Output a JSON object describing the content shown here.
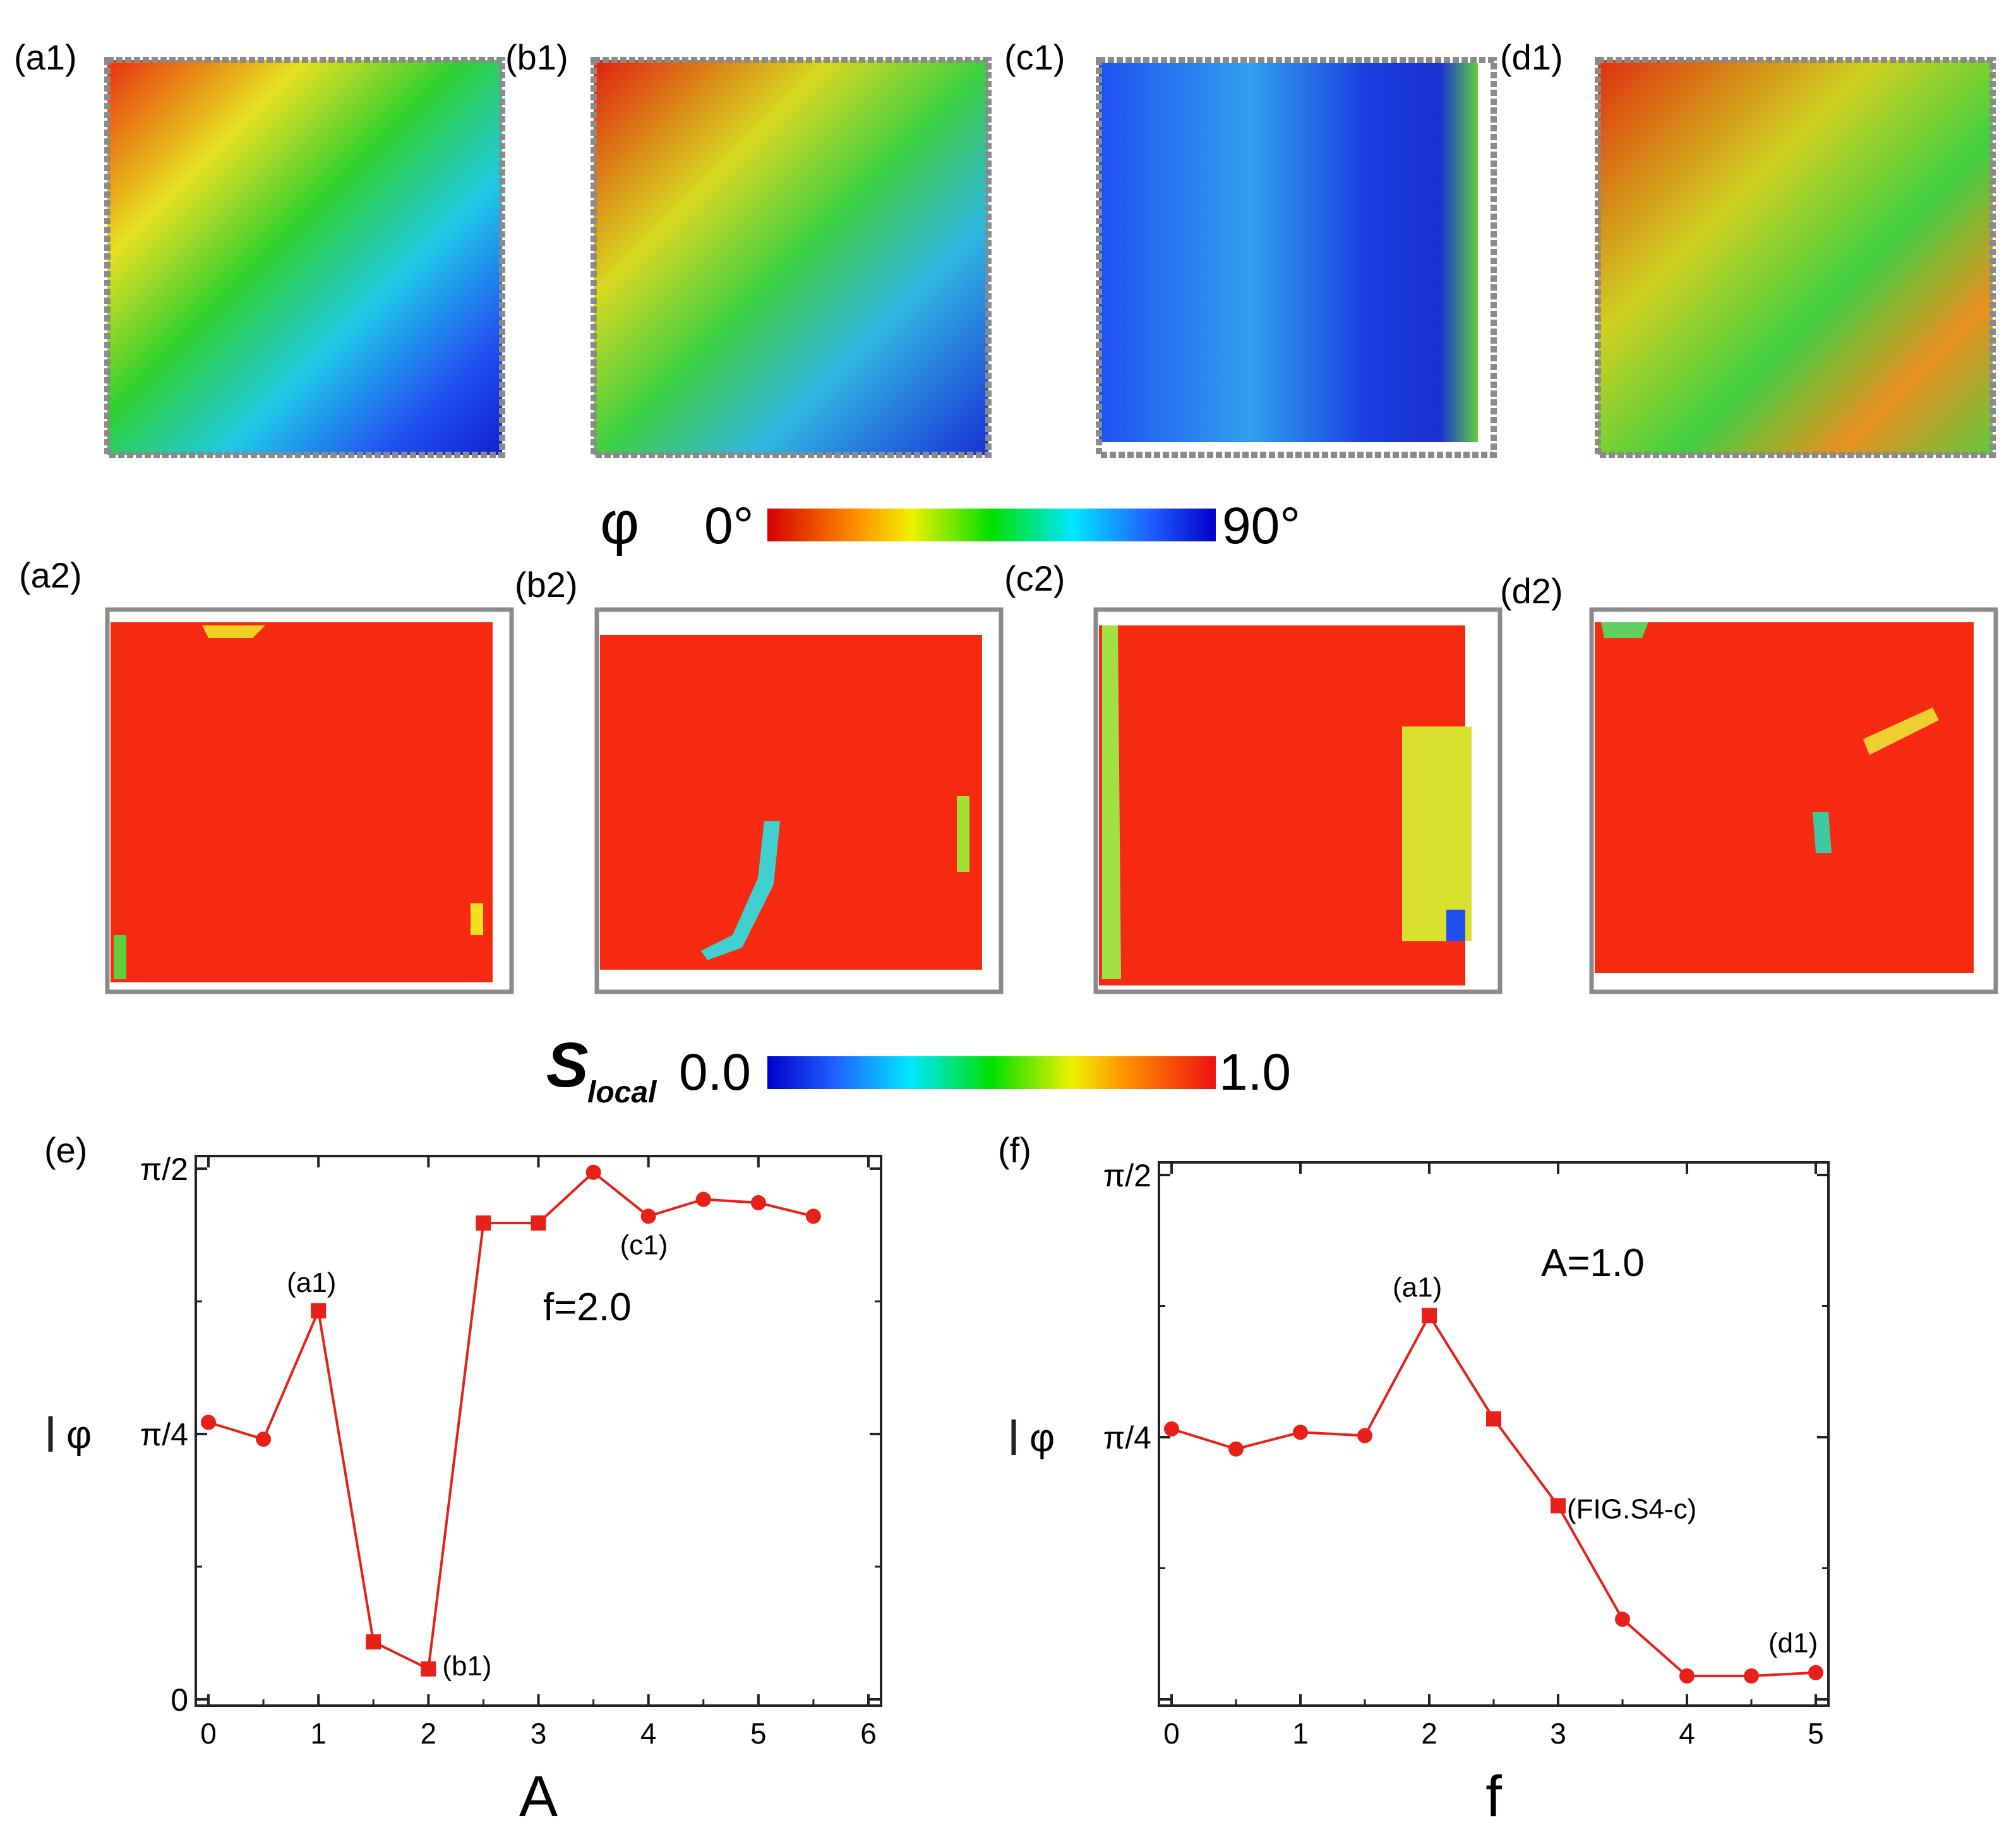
{
  "labels": {
    "a1": "(a1)",
    "b1": "(b1)",
    "c1": "(c1)",
    "d1": "(d1)",
    "a2": "(a2)",
    "b2": "(b2)",
    "c2": "(c2)",
    "d2": "(d2)",
    "e": "(e)",
    "f": "(f)"
  },
  "colorbars": {
    "phi": {
      "symbol": "φ",
      "min_label": "0°",
      "max_label": "90°"
    },
    "slocal": {
      "symbol": "S",
      "subscript": "local",
      "min_label": "0.0",
      "max_label": "1.0"
    }
  },
  "colors": {
    "line": "#e8201a",
    "frame": "#8a8a8a",
    "map_red": "#f52a10"
  },
  "chart_data": [
    {
      "type": "line",
      "panel": "(e)",
      "xlabel": "A",
      "ylabel": "φ",
      "xlim": [
        0,
        6
      ],
      "xticks": [
        "0",
        "1",
        "2",
        "3",
        "4",
        "5",
        "6"
      ],
      "yticks": [
        {
          "value": 0,
          "label": "0"
        },
        {
          "value": 0.785398,
          "label": "π/4"
        },
        {
          "value": 1.570796,
          "label": "π/2"
        }
      ],
      "ylim": [
        0,
        1.570796
      ],
      "annotation": "f=2.0",
      "x": [
        0,
        0.5,
        1,
        1.5,
        2,
        2.5,
        3,
        3.5,
        4,
        4.5,
        5,
        5.5
      ],
      "y": [
        0.82,
        0.77,
        1.15,
        0.17,
        0.09,
        1.41,
        1.41,
        1.56,
        1.43,
        1.48,
        1.47,
        1.43
      ],
      "markers": [
        "circle",
        "circle",
        "square",
        "square",
        "square",
        "square",
        "square",
        "circle",
        "circle",
        "circle",
        "circle",
        "circle"
      ],
      "point_labels": [
        {
          "index": 2,
          "text": "(a1)"
        },
        {
          "index": 4,
          "text": "(b1)"
        },
        {
          "index": 8,
          "text": "(c1)"
        }
      ]
    },
    {
      "type": "line",
      "panel": "(f)",
      "xlabel": "f",
      "ylabel": "φ",
      "xlim": [
        0,
        5
      ],
      "xticks": [
        "0",
        "1",
        "2",
        "3",
        "4",
        "5"
      ],
      "yticks": [
        {
          "value": 0,
          "label": ""
        },
        {
          "value": 0.785398,
          "label": "π/4"
        },
        {
          "value": 1.570796,
          "label": "π/2"
        }
      ],
      "ylim": [
        0,
        1.570796
      ],
      "annotation": "A=1.0",
      "x": [
        0,
        0.5,
        1,
        1.5,
        2,
        2.5,
        3,
        3.5,
        4,
        4.5,
        5
      ],
      "y": [
        0.81,
        0.75,
        0.8,
        0.79,
        1.15,
        0.84,
        0.58,
        0.24,
        0.07,
        0.07,
        0.08
      ],
      "markers": [
        "circle",
        "circle",
        "circle",
        "circle",
        "square",
        "square",
        "square",
        "circle",
        "circle",
        "circle",
        "circle"
      ],
      "point_labels": [
        {
          "index": 4,
          "text": "(a1)"
        },
        {
          "index": 6,
          "text": "(FIG.S4-c)"
        },
        {
          "index": 10,
          "text": "(d1)"
        }
      ]
    }
  ]
}
